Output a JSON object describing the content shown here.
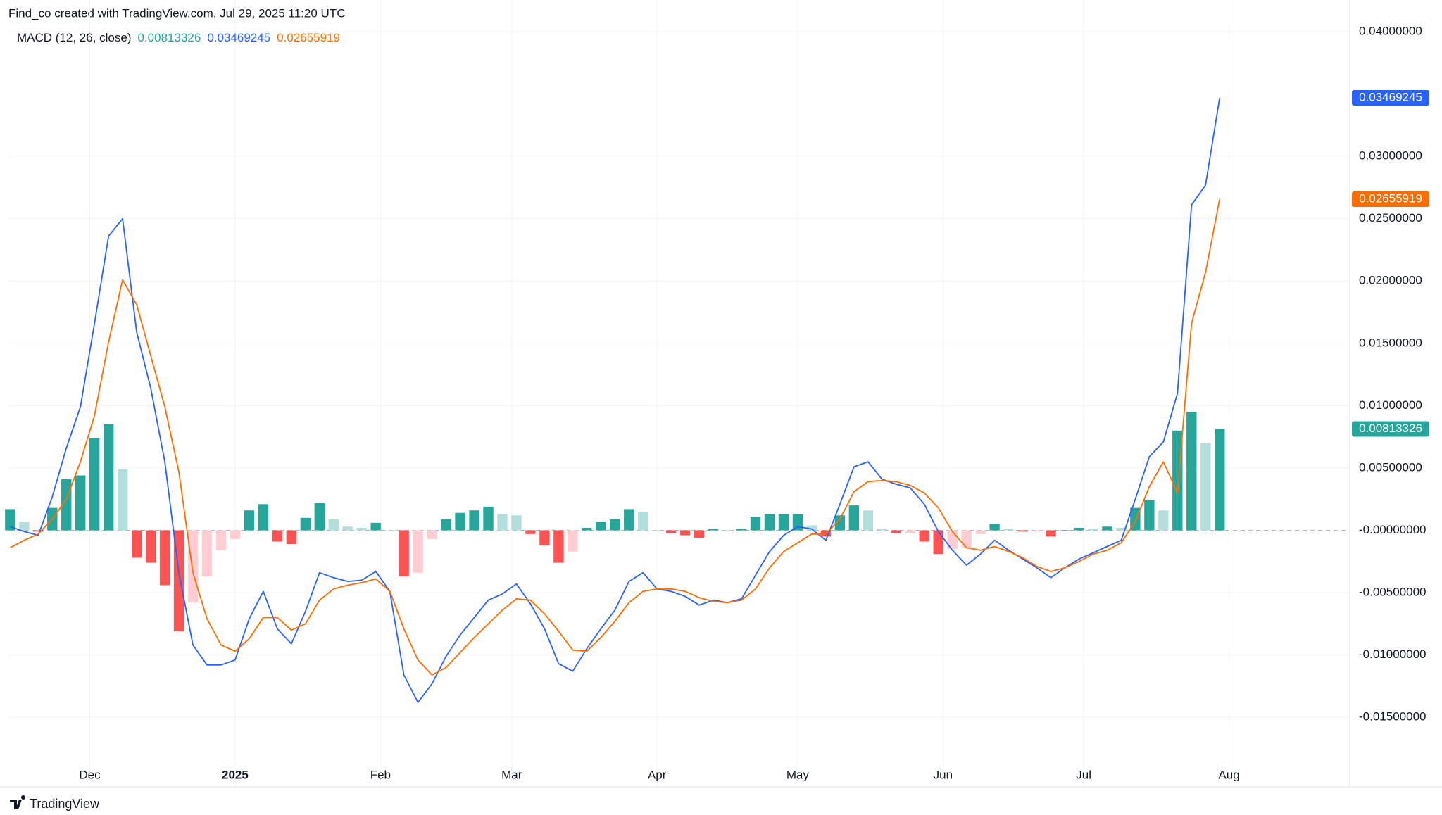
{
  "attribution": "Find_co created with TradingView.com, Jul 29, 2025 11:20 UTC",
  "brand": "TradingView",
  "chart_data": {
    "type": "macd",
    "title": "MACD (12, 26, close)",
    "x": [
      -17,
      -14,
      -11,
      -8,
      -5,
      -2,
      1,
      4,
      7,
      10,
      13,
      16,
      19,
      22,
      25,
      28,
      31,
      34,
      37,
      40,
      43,
      46,
      49,
      52,
      55,
      58,
      61,
      64,
      67,
      70,
      73,
      76,
      79,
      82,
      85,
      88,
      91,
      94,
      97,
      100,
      103,
      106,
      109,
      112,
      115,
      118,
      121,
      124,
      127,
      130,
      133,
      136,
      139,
      142,
      145,
      148,
      151,
      154,
      157,
      160,
      163,
      166,
      169,
      172,
      175,
      178,
      181,
      184,
      187,
      190,
      193,
      196,
      199,
      202,
      205,
      208,
      211,
      214,
      217,
      220,
      223,
      226,
      229,
      232,
      235,
      238,
      241
    ],
    "xlim": [
      -17.2,
      268.6
    ],
    "xticks": [
      {
        "value": 0,
        "label": "Dec"
      },
      {
        "value": 31,
        "label": "2025",
        "bold": true
      },
      {
        "value": 62,
        "label": "Feb"
      },
      {
        "value": 90,
        "label": "Mar"
      },
      {
        "value": 121,
        "label": "Apr"
      },
      {
        "value": 151,
        "label": "May"
      },
      {
        "value": 182,
        "label": "Jun"
      },
      {
        "value": 212,
        "label": "Jul"
      },
      {
        "value": 243,
        "label": "Aug"
      }
    ],
    "ylim": [
      -0.0186,
      0.0409
    ],
    "yticks": [
      {
        "value": 0.04,
        "label": "0.04000000"
      },
      {
        "value": 0.03,
        "label": "0.03000000"
      },
      {
        "value": 0.025,
        "label": "0.02500000"
      },
      {
        "value": 0.02,
        "label": "0.02000000"
      },
      {
        "value": 0.015,
        "label": "0.01500000"
      },
      {
        "value": 0.01,
        "label": "0.01000000"
      },
      {
        "value": 0.005,
        "label": "0.00500000"
      },
      {
        "value": 0,
        "label": "-0.00000000"
      },
      {
        "value": -0.005,
        "label": "-0.00500000"
      },
      {
        "value": -0.01,
        "label": "-0.01000000"
      },
      {
        "value": -0.015,
        "label": "-0.01500000"
      }
    ],
    "grid": true,
    "series": [
      {
        "kind": "histogram",
        "color": "#26a69a",
        "colors": {
          "rising_above": "#26a69a",
          "falling_above": "#b2dfdb",
          "falling_below": "#ff5252",
          "rising_below": "#ffcdd2"
        },
        "values": [
          0.0017,
          0.0007,
          -0.0001,
          0.0018,
          0.0041,
          0.0044,
          0.0074,
          0.0085,
          0.0049,
          -0.0022,
          -0.0026,
          -0.0044,
          -0.0081,
          -0.0058,
          -0.0037,
          -0.0016,
          -0.0007,
          0.0016,
          0.0021,
          -0.0009,
          -0.0011,
          0.001,
          0.0022,
          0.0009,
          0.0003,
          0.0002,
          0.0006,
          0.0,
          -0.0037,
          -0.0034,
          -0.0007,
          0.0009,
          0.0014,
          0.0016,
          0.0019,
          0.0013,
          0.0012,
          -0.0003,
          -0.0012,
          -0.0026,
          -0.0017,
          0.0002,
          0.0007,
          0.0009,
          0.0017,
          0.0015,
          0.0,
          -0.0002,
          -0.0004,
          -0.0006,
          0.0001,
          0.0,
          0.0001,
          0.0011,
          0.0013,
          0.0013,
          0.0013,
          0.0004,
          -0.0005,
          0.0012,
          0.002,
          0.0016,
          0.0001,
          -0.0002,
          -0.0002,
          -0.0009,
          -0.0019,
          -0.0015,
          -0.0014,
          -0.0003,
          0.0005,
          0.0001,
          -0.0001,
          -0.0001,
          -0.0005,
          0.0,
          0.0002,
          0.0001,
          0.0003,
          0.0002,
          0.0018,
          0.0024,
          0.0016,
          0.008,
          0.0095,
          0.007,
          0.00813326
        ]
      },
      {
        "kind": "line",
        "color": "#2962ff",
        "values": [
          0.0003,
          -0.0001,
          -0.0004,
          0.0027,
          0.0066,
          0.0099,
          0.0166,
          0.0236,
          0.025,
          0.0159,
          0.0114,
          0.0055,
          -0.0034,
          -0.0092,
          -0.0108,
          -0.0108,
          -0.0104,
          -0.0071,
          -0.0049,
          -0.0079,
          -0.0091,
          -0.0065,
          -0.0034,
          -0.0038,
          -0.0041,
          -0.004,
          -0.0033,
          -0.0049,
          -0.0116,
          -0.0138,
          -0.0123,
          -0.0101,
          -0.0084,
          -0.007,
          -0.0056,
          -0.0051,
          -0.0043,
          -0.0059,
          -0.0079,
          -0.0107,
          -0.0113,
          -0.0095,
          -0.0079,
          -0.0064,
          -0.0041,
          -0.0034,
          -0.0047,
          -0.0049,
          -0.0053,
          -0.006,
          -0.0056,
          -0.0058,
          -0.0055,
          -0.0036,
          -0.0017,
          -0.0004,
          0.0003,
          0.0001,
          -0.0008,
          0.0021,
          0.0051,
          0.0055,
          0.0041,
          0.0037,
          0.0034,
          0.0021,
          -0.0001,
          -0.0016,
          -0.0028,
          -0.0019,
          -0.0008,
          -0.0016,
          -0.0023,
          -0.003,
          -0.0038,
          -0.003,
          -0.0023,
          -0.0018,
          -0.0013,
          -0.0008,
          0.0025,
          0.0059,
          0.0071,
          0.011,
          0.0261,
          0.0277,
          0.03469245
        ]
      },
      {
        "kind": "line",
        "color": "#ff6d00",
        "values": [
          -0.0014,
          -0.0008,
          -0.0003,
          0.0009,
          0.0025,
          0.0055,
          0.0092,
          0.0151,
          0.0201,
          0.0181,
          0.014,
          0.0099,
          0.0047,
          -0.0034,
          -0.0071,
          -0.0092,
          -0.0097,
          -0.0087,
          -0.007,
          -0.007,
          -0.008,
          -0.0075,
          -0.0056,
          -0.0047,
          -0.0044,
          -0.0042,
          -0.0039,
          -0.0049,
          -0.0079,
          -0.0104,
          -0.0116,
          -0.011,
          -0.0098,
          -0.0086,
          -0.0075,
          -0.0064,
          -0.0055,
          -0.0056,
          -0.0067,
          -0.0081,
          -0.0096,
          -0.0097,
          -0.0086,
          -0.0073,
          -0.0058,
          -0.0049,
          -0.0047,
          -0.0047,
          -0.0049,
          -0.0054,
          -0.0057,
          -0.0058,
          -0.0056,
          -0.0047,
          -0.003,
          -0.0017,
          -0.001,
          -0.0003,
          -0.0003,
          0.0009,
          0.0031,
          0.0039,
          0.004,
          0.0039,
          0.0036,
          0.003,
          0.0018,
          -0.0001,
          -0.0014,
          -0.0016,
          -0.0013,
          -0.0017,
          -0.0022,
          -0.0029,
          -0.0033,
          -0.003,
          -0.0025,
          -0.0019,
          -0.0016,
          -0.001,
          0.0007,
          0.0035,
          0.0055,
          0.003,
          0.0166,
          0.0207,
          0.02655919
        ]
      }
    ]
  }
}
